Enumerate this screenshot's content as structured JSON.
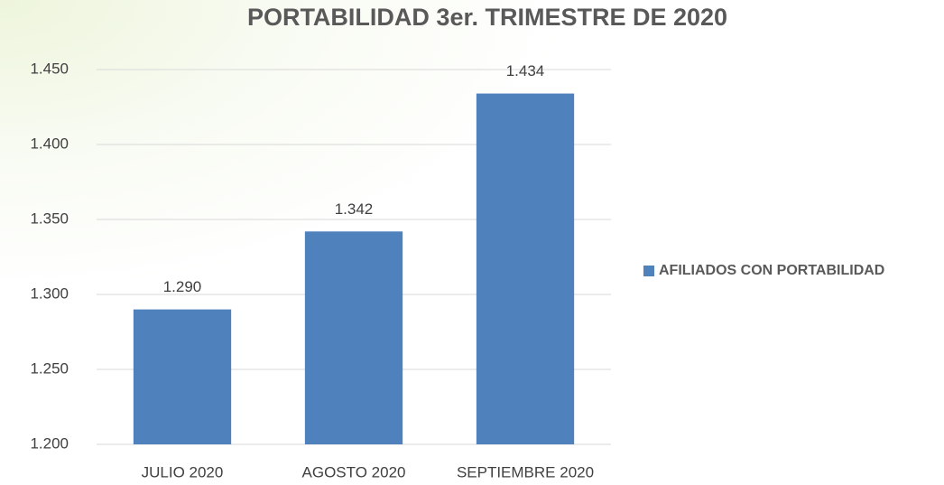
{
  "chart_data": {
    "type": "bar",
    "title": "PORTABILIDAD 3er. TRIMESTRE DE 2020",
    "categories": [
      "JULIO 2020",
      "AGOSTO 2020",
      "SEPTIEMBRE 2020"
    ],
    "series": [
      {
        "name": "AFILIADOS CON PORTABILIDAD",
        "color": "#4f81bd",
        "values": [
          1290,
          1342,
          1434
        ],
        "value_labels": [
          "1.290",
          "1.342",
          "1.434"
        ]
      }
    ],
    "ylim": [
      1200,
      1450
    ],
    "yticks": [
      {
        "value": 1200,
        "label": "1.200"
      },
      {
        "value": 1250,
        "label": "1.250"
      },
      {
        "value": 1300,
        "label": "1.300"
      },
      {
        "value": 1350,
        "label": "1.350"
      },
      {
        "value": 1400,
        "label": "1.400"
      },
      {
        "value": 1450,
        "label": "1.450"
      }
    ],
    "grid": true,
    "legend": "right"
  }
}
